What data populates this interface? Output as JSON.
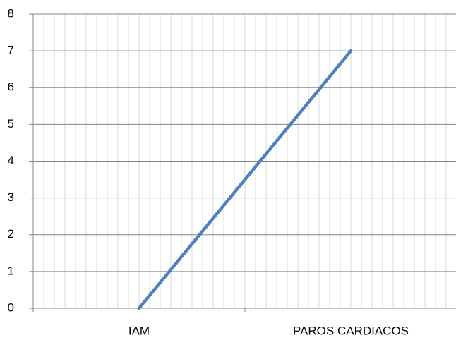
{
  "chart_data": {
    "type": "line",
    "categories": [
      "IAM",
      "PAROS CARDIACOS"
    ],
    "values": [
      0,
      7
    ],
    "color": "#4f81bd",
    "ylim": [
      0,
      8
    ],
    "yticks": [
      0,
      1,
      2,
      3,
      4,
      5,
      6,
      7,
      8
    ],
    "grid": true
  }
}
